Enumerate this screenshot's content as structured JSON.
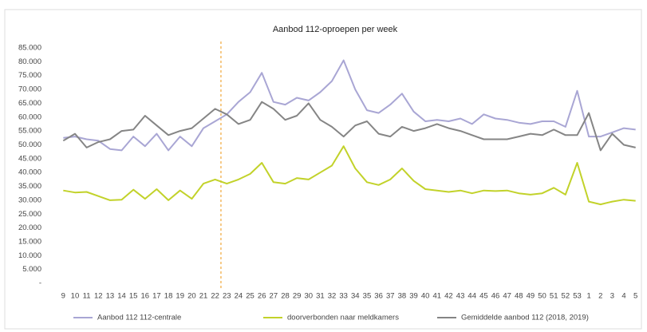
{
  "chart_data": {
    "type": "line",
    "title": "Aanbod 112-oproepen per week",
    "categories": [
      "9",
      "10",
      "11",
      "12",
      "13",
      "14",
      "15",
      "16",
      "17",
      "18",
      "19",
      "20",
      "21",
      "22",
      "23",
      "24",
      "25",
      "26",
      "27",
      "28",
      "29",
      "30",
      "31",
      "32",
      "33",
      "34",
      "35",
      "36",
      "37",
      "38",
      "39",
      "40",
      "41",
      "42",
      "43",
      "44",
      "45",
      "46",
      "47",
      "48",
      "49",
      "50",
      "51",
      "52",
      "53",
      "1",
      "2",
      "3",
      "4",
      "5"
    ],
    "series": [
      {
        "name": "Aanbod 112 112-centrale",
        "color": "#a9a6d4",
        "values": [
          52500,
          53000,
          52000,
          51500,
          48500,
          48000,
          53000,
          49500,
          54000,
          48000,
          53000,
          49500,
          56000,
          58500,
          61000,
          65500,
          69000,
          76000,
          65500,
          64500,
          67000,
          66000,
          69000,
          73000,
          80500,
          70000,
          62500,
          61500,
          64500,
          68500,
          62000,
          58500,
          59000,
          58500,
          59500,
          57500,
          61000,
          59500,
          59000,
          58000,
          57500,
          58500,
          58500,
          56500,
          69500,
          53000,
          53000,
          54500,
          56000,
          55500
        ]
      },
      {
        "name": "doorverbonden naar meldkamers",
        "color": "#c2d22a",
        "values": [
          33500,
          32800,
          33000,
          31500,
          30000,
          30200,
          33800,
          30500,
          34000,
          30000,
          33500,
          30500,
          36000,
          37500,
          36000,
          37500,
          39500,
          43500,
          36500,
          36000,
          38000,
          37500,
          40000,
          42500,
          49500,
          41500,
          36500,
          35500,
          37500,
          41500,
          37000,
          34000,
          33500,
          33000,
          33500,
          32500,
          33500,
          33300,
          33500,
          32500,
          32000,
          32500,
          34500,
          32000,
          43500,
          29500,
          28500,
          29500,
          30200,
          29800
        ]
      },
      {
        "name": "Gemiddelde aanbod 112 (2018, 2019)",
        "color": "#858585",
        "values": [
          51500,
          54000,
          49000,
          51000,
          52000,
          55000,
          55500,
          60500,
          57000,
          53500,
          55000,
          56000,
          59500,
          63000,
          61000,
          57500,
          59000,
          65500,
          63000,
          59000,
          60500,
          65000,
          59000,
          56500,
          53000,
          57000,
          58500,
          54000,
          53000,
          56500,
          55000,
          56000,
          57500,
          56000,
          55000,
          53500,
          52000,
          52000,
          52000,
          53000,
          54000,
          53500,
          55500,
          53500,
          53500,
          61500,
          48000,
          54000,
          50000,
          49000
        ]
      }
    ],
    "ylim": [
      0,
      85000
    ],
    "yticks": [
      {
        "value": 0,
        "label": "-"
      },
      {
        "value": 5000,
        "label": "5.000"
      },
      {
        "value": 10000,
        "label": "10.000"
      },
      {
        "value": 15000,
        "label": "15.000"
      },
      {
        "value": 20000,
        "label": "20.000"
      },
      {
        "value": 25000,
        "label": "25.000"
      },
      {
        "value": 30000,
        "label": "30.000"
      },
      {
        "value": 35000,
        "label": "35.000"
      },
      {
        "value": 40000,
        "label": "40.000"
      },
      {
        "value": 45000,
        "label": "45.000"
      },
      {
        "value": 50000,
        "label": "50.000"
      },
      {
        "value": 55000,
        "label": "55.000"
      },
      {
        "value": 60000,
        "label": "60.000"
      },
      {
        "value": 65000,
        "label": "65.000"
      },
      {
        "value": 70000,
        "label": "70.000"
      },
      {
        "value": 75000,
        "label": "75.000"
      },
      {
        "value": 80000,
        "label": "80.000"
      },
      {
        "value": 85000,
        "label": "85.000"
      }
    ],
    "grid": false,
    "reference_line": {
      "category": "23",
      "color": "#f0a83a",
      "style": "dashed"
    }
  }
}
